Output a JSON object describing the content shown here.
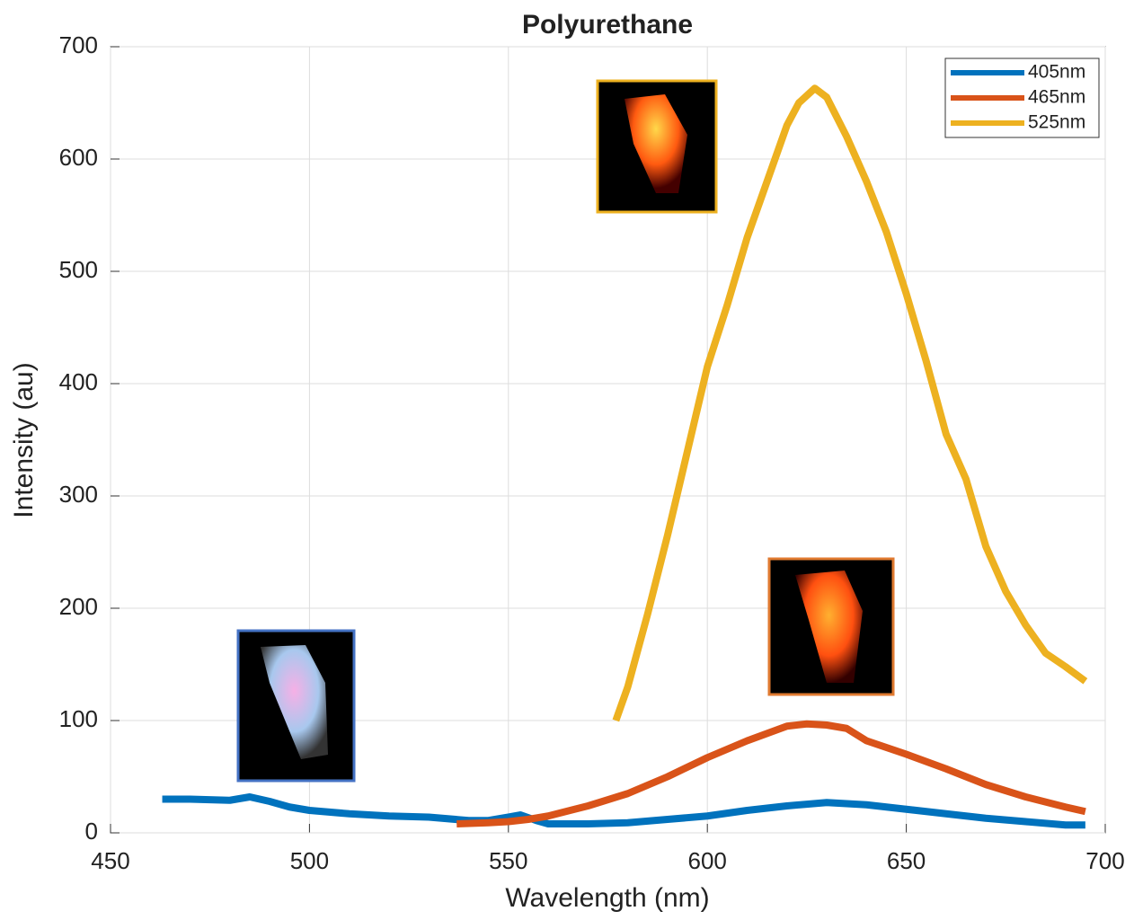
{
  "chart_data": {
    "type": "line",
    "title": "Polyurethane",
    "x_label": "Wavelength (nm)",
    "y_label": "Intensity (au)",
    "xlim": [
      450,
      700
    ],
    "xticks": [
      450,
      500,
      550,
      600,
      650,
      700
    ],
    "ylim": [
      0,
      700
    ],
    "yticks": [
      0,
      100,
      200,
      300,
      400,
      500,
      600,
      700
    ],
    "grid": true,
    "legend": "top-right",
    "series": [
      {
        "name": "405nm",
        "color": "#0072bd",
        "x": [
          463,
          470,
          480,
          485,
          490,
          495,
          500,
          510,
          520,
          530,
          540,
          545,
          550,
          553,
          557,
          560,
          570,
          580,
          590,
          600,
          610,
          620,
          630,
          640,
          650,
          660,
          670,
          680,
          690,
          695
        ],
        "values": [
          30,
          30,
          29,
          32,
          28,
          23,
          20,
          17,
          15,
          14,
          11,
          11,
          14,
          16,
          11,
          8,
          8,
          9,
          12,
          15,
          20,
          24,
          27,
          25,
          21,
          17,
          13,
          10,
          7,
          7
        ]
      },
      {
        "name": "465nm",
        "color": "#d95319",
        "x": [
          537,
          545,
          550,
          555,
          560,
          570,
          580,
          590,
          600,
          610,
          620,
          625,
          630,
          635,
          640,
          650,
          660,
          670,
          680,
          690,
          695
        ],
        "values": [
          8,
          9,
          10,
          12,
          15,
          24,
          35,
          50,
          67,
          82,
          95,
          97,
          96,
          93,
          82,
          70,
          57,
          43,
          32,
          23,
          19
        ]
      },
      {
        "name": "525nm",
        "color": "#edb120",
        "x": [
          577,
          580,
          585,
          590,
          595,
          600,
          605,
          610,
          615,
          620,
          623,
          627,
          630,
          635,
          640,
          645,
          650,
          655,
          660,
          665,
          670,
          675,
          680,
          685,
          690,
          695
        ],
        "values": [
          100,
          130,
          195,
          265,
          340,
          415,
          470,
          530,
          580,
          630,
          650,
          663,
          655,
          620,
          580,
          535,
          480,
          420,
          355,
          315,
          255,
          215,
          185,
          160,
          148,
          135
        ]
      }
    ]
  }
}
